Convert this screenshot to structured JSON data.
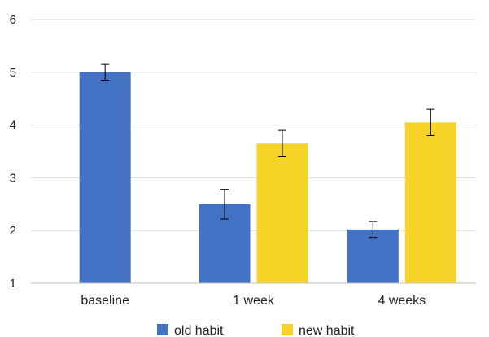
{
  "chart_data": {
    "type": "bar",
    "categories": [
      "baseline",
      "1 week",
      "4 weeks"
    ],
    "series": [
      {
        "name": "old habit",
        "color": "#4472C4",
        "values": [
          5.0,
          2.5,
          2.02
        ],
        "error": [
          0.15,
          0.28,
          0.15
        ]
      },
      {
        "name": "new habit",
        "color": "#F5D327",
        "values": [
          null,
          3.65,
          4.05
        ],
        "error": [
          null,
          0.25,
          0.25
        ]
      }
    ],
    "title": "",
    "xlabel": "",
    "ylabel": "",
    "ylim": [
      1,
      6
    ],
    "yticks": [
      "1",
      "2",
      "3",
      "4",
      "5",
      "6"
    ],
    "grid": true,
    "legend_position": "bottom"
  }
}
